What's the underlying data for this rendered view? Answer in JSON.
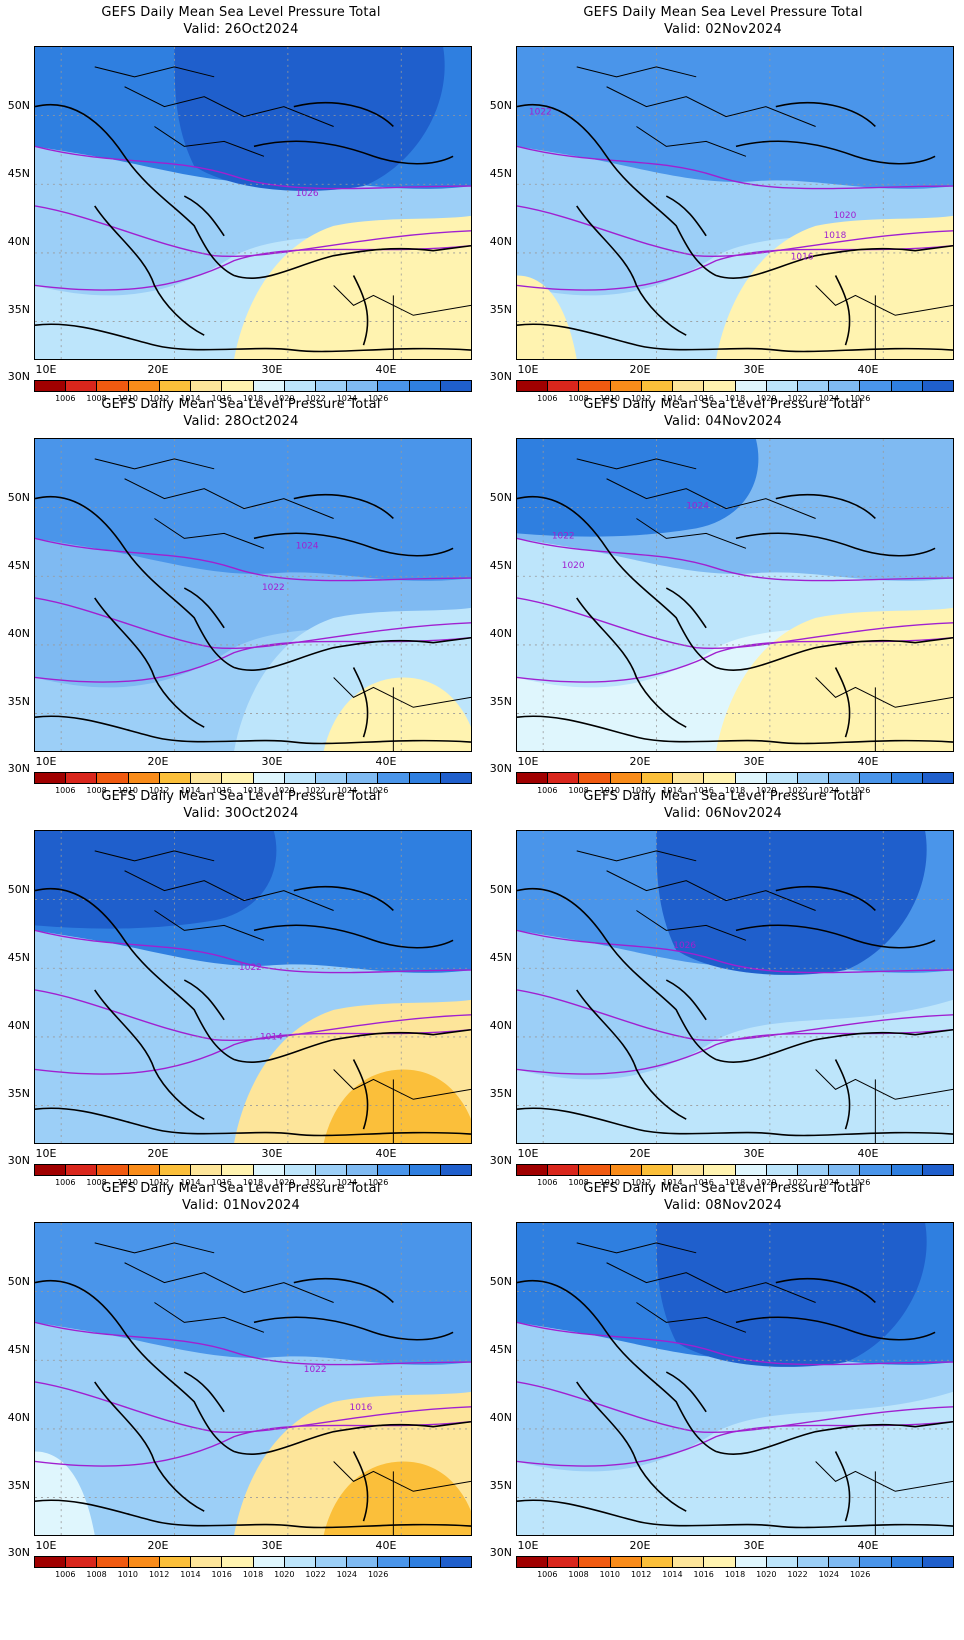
{
  "panels": [
    {
      "title": "GEFS Daily Mean Sea Level Pressure Total",
      "valid": "Valid: 26Oct2024",
      "bg": "#9ccff7",
      "blobs": [
        {
          "c": "#2f7fe0",
          "shape": "north"
        },
        {
          "c": "#1f5fcc",
          "shape": "northcore"
        },
        {
          "c": "#bde5fb",
          "shape": "south"
        },
        {
          "c": "#fff3b0",
          "shape": "se"
        }
      ],
      "contours": [
        {
          "label": "1026",
          "lx": 262,
          "ly": 150
        }
      ]
    },
    {
      "title": "GEFS Daily Mean Sea Level Pressure Total",
      "valid": "Valid: 02Nov2024",
      "bg": "#9ccff7",
      "blobs": [
        {
          "c": "#4a95ea",
          "shape": "north"
        },
        {
          "c": "#bde5fb",
          "shape": "south"
        },
        {
          "c": "#fff3b0",
          "shape": "se"
        },
        {
          "c": "#fff3b0",
          "shape": "sw"
        }
      ],
      "contours": [
        {
          "label": "1022",
          "lx": 12,
          "ly": 68
        },
        {
          "label": "1020",
          "lx": 318,
          "ly": 172
        },
        {
          "label": "1018",
          "lx": 308,
          "ly": 192
        },
        {
          "label": "1016",
          "lx": 275,
          "ly": 214
        }
      ]
    },
    {
      "title": "GEFS Daily Mean Sea Level Pressure Total",
      "valid": "Valid: 28Oct2024",
      "bg": "#7fbaf2",
      "blobs": [
        {
          "c": "#4a95ea",
          "shape": "north"
        },
        {
          "c": "#9ccff7",
          "shape": "south"
        },
        {
          "c": "#bde5fb",
          "shape": "se"
        },
        {
          "c": "#fff3b0",
          "shape": "sefar"
        }
      ],
      "contours": [
        {
          "label": "1024",
          "lx": 262,
          "ly": 110
        },
        {
          "label": "1022",
          "lx": 228,
          "ly": 152
        }
      ]
    },
    {
      "title": "GEFS Daily Mean Sea Level Pressure Total",
      "valid": "Valid: 04Nov2024",
      "bg": "#bde5fb",
      "blobs": [
        {
          "c": "#7fbaf2",
          "shape": "north"
        },
        {
          "c": "#2f7fe0",
          "shape": "nw"
        },
        {
          "c": "#dff6fd",
          "shape": "south"
        },
        {
          "c": "#fff3b0",
          "shape": "se"
        }
      ],
      "contours": [
        {
          "label": "1024",
          "lx": 170,
          "ly": 70
        },
        {
          "label": "1022",
          "lx": 35,
          "ly": 100
        },
        {
          "label": "1020",
          "lx": 45,
          "ly": 130
        }
      ]
    },
    {
      "title": "GEFS Daily Mean Sea Level Pressure Total",
      "valid": "Valid: 30Oct2024",
      "bg": "#9ccff7",
      "blobs": [
        {
          "c": "#2f7fe0",
          "shape": "north"
        },
        {
          "c": "#1f5fcc",
          "shape": "nw"
        },
        {
          "c": "#fde59a",
          "shape": "se"
        },
        {
          "c": "#fbbf3a",
          "shape": "sefar"
        }
      ],
      "contours": [
        {
          "label": "1022",
          "lx": 205,
          "ly": 140
        },
        {
          "label": "1014",
          "lx": 226,
          "ly": 210
        }
      ]
    },
    {
      "title": "GEFS Daily Mean Sea Level Pressure Total",
      "valid": "Valid: 06Nov2024",
      "bg": "#9ccff7",
      "blobs": [
        {
          "c": "#4a95ea",
          "shape": "north"
        },
        {
          "c": "#1f5fcc",
          "shape": "northcore"
        },
        {
          "c": "#bde5fb",
          "shape": "south"
        }
      ],
      "contours": [
        {
          "label": "1026",
          "lx": 157,
          "ly": 118
        }
      ]
    },
    {
      "title": "GEFS Daily Mean Sea Level Pressure Total",
      "valid": "Valid: 01Nov2024",
      "bg": "#9ccff7",
      "blobs": [
        {
          "c": "#4a95ea",
          "shape": "north"
        },
        {
          "c": "#fde59a",
          "shape": "se"
        },
        {
          "c": "#fbbf3a",
          "shape": "sefar"
        },
        {
          "c": "#dff6fd",
          "shape": "sw"
        }
      ],
      "contours": [
        {
          "label": "1022",
          "lx": 270,
          "ly": 150
        },
        {
          "label": "1016",
          "lx": 316,
          "ly": 188
        }
      ]
    },
    {
      "title": "GEFS Daily Mean Sea Level Pressure Total",
      "valid": "Valid: 08Nov2024",
      "bg": "#9ccff7",
      "blobs": [
        {
          "c": "#2f7fe0",
          "shape": "north"
        },
        {
          "c": "#1f5fcc",
          "shape": "northcore"
        },
        {
          "c": "#bde5fb",
          "shape": "south"
        }
      ],
      "contours": []
    }
  ],
  "lat_labels": [
    "50N",
    "45N",
    "40N",
    "35N",
    "30N"
  ],
  "lon_labels": [
    "10E",
    "20E",
    "30E",
    "40E"
  ],
  "colorbar": {
    "colors": [
      "#a00000",
      "#d9261c",
      "#f05a10",
      "#f98c1a",
      "#fbbf3a",
      "#fde59a",
      "#fff3b0",
      "#dff6fd",
      "#bde5fb",
      "#9ccff7",
      "#7fbaf2",
      "#4a95ea",
      "#2f7fe0",
      "#1f5fcc"
    ],
    "labels": [
      "1006",
      "1008",
      "1010",
      "1012",
      "1014",
      "1016",
      "1018",
      "1020",
      "1022",
      "1024",
      "1026"
    ]
  }
}
